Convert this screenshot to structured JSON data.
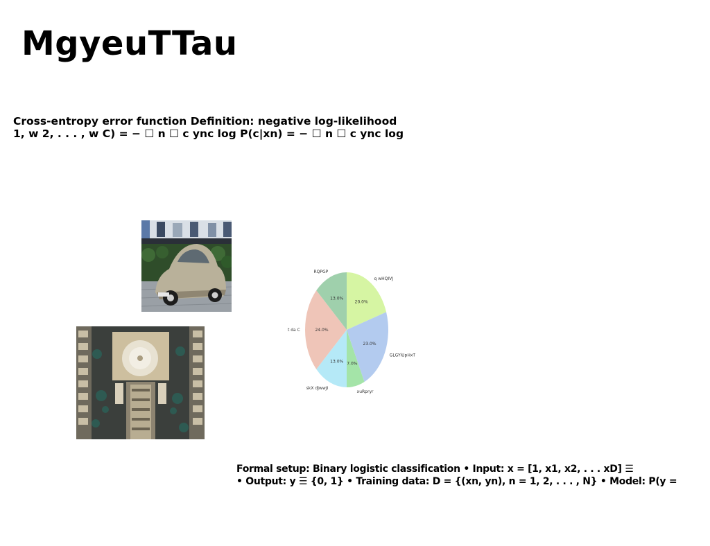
{
  "page": {
    "title": "MgyeuTTau"
  },
  "text_block": {
    "line1": "Cross-entropy error function Definition: negative log-likelihood",
    "line2": "1, w 2, . . . , w C) = − ☐ n ☐ c ync log P(c|xn) = − ☐ n ☐ c ync log"
  },
  "bottom_text": {
    "line1": "Formal setup: Binary logistic classification • Input: x = [1, x1, x2, . . . xD] ☰",
    "line2": "• Output: y ☰ {0, 1} • Training data: D = {(xn, yn), n = 1, 2, . . . , N} • Model: P(y ="
  },
  "images": {
    "car": "car-photo",
    "aerial": "aerial-building-photo"
  },
  "chart_data": {
    "type": "pie",
    "title": "",
    "slices": [
      {
        "label": "q wHQIVJ",
        "value": 20.0,
        "pct_label": "20.0%",
        "color": "#d6f5a3"
      },
      {
        "label": "GLGYiUpHxT",
        "value": 23.0,
        "pct_label": "23.0%",
        "color": "#b3cbef"
      },
      {
        "label": "xuRpryr",
        "value": 7.0,
        "pct_label": "7.0%",
        "color": "#a4e4a8"
      },
      {
        "label": "skX dJwwJI",
        "value": 13.0,
        "pct_label": "13.0%",
        "color": "#b5e9f7"
      },
      {
        "label": "t da C",
        "value": 24.0,
        "pct_label": "24.0%",
        "color": "#efc5b8"
      },
      {
        "label": "RQPGP",
        "value": 13.0,
        "pct_label": "13.0%",
        "color": "#9fd0ac"
      }
    ],
    "start_angle_deg": 90,
    "direction": "clockwise",
    "legend": "none"
  }
}
